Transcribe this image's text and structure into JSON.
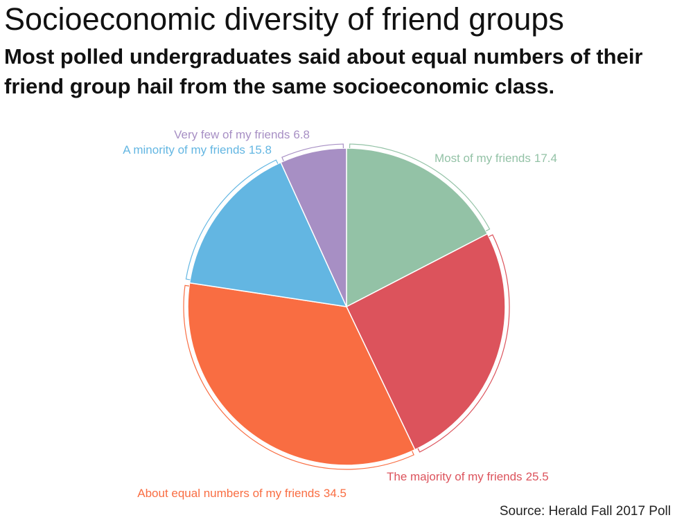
{
  "chart_data": {
    "type": "pie",
    "title": "Socioeconomic diversity of friend groups",
    "subtitle": "Most polled undergraduates said about equal numbers of their friend group hail from the same socioeconomic class.",
    "categories": [
      "Most of my friends",
      "The majority of my friends",
      "About equal numbers of my friends",
      "A minority of my friends",
      "Very few of my friends"
    ],
    "values": [
      17.4,
      25.5,
      34.5,
      15.8,
      6.8
    ],
    "colors": [
      "#93c2a6",
      "#dc535c",
      "#f96d42",
      "#63b6e2",
      "#a78fc4"
    ],
    "source": "Source: Herald Fall 2017 Poll"
  }
}
